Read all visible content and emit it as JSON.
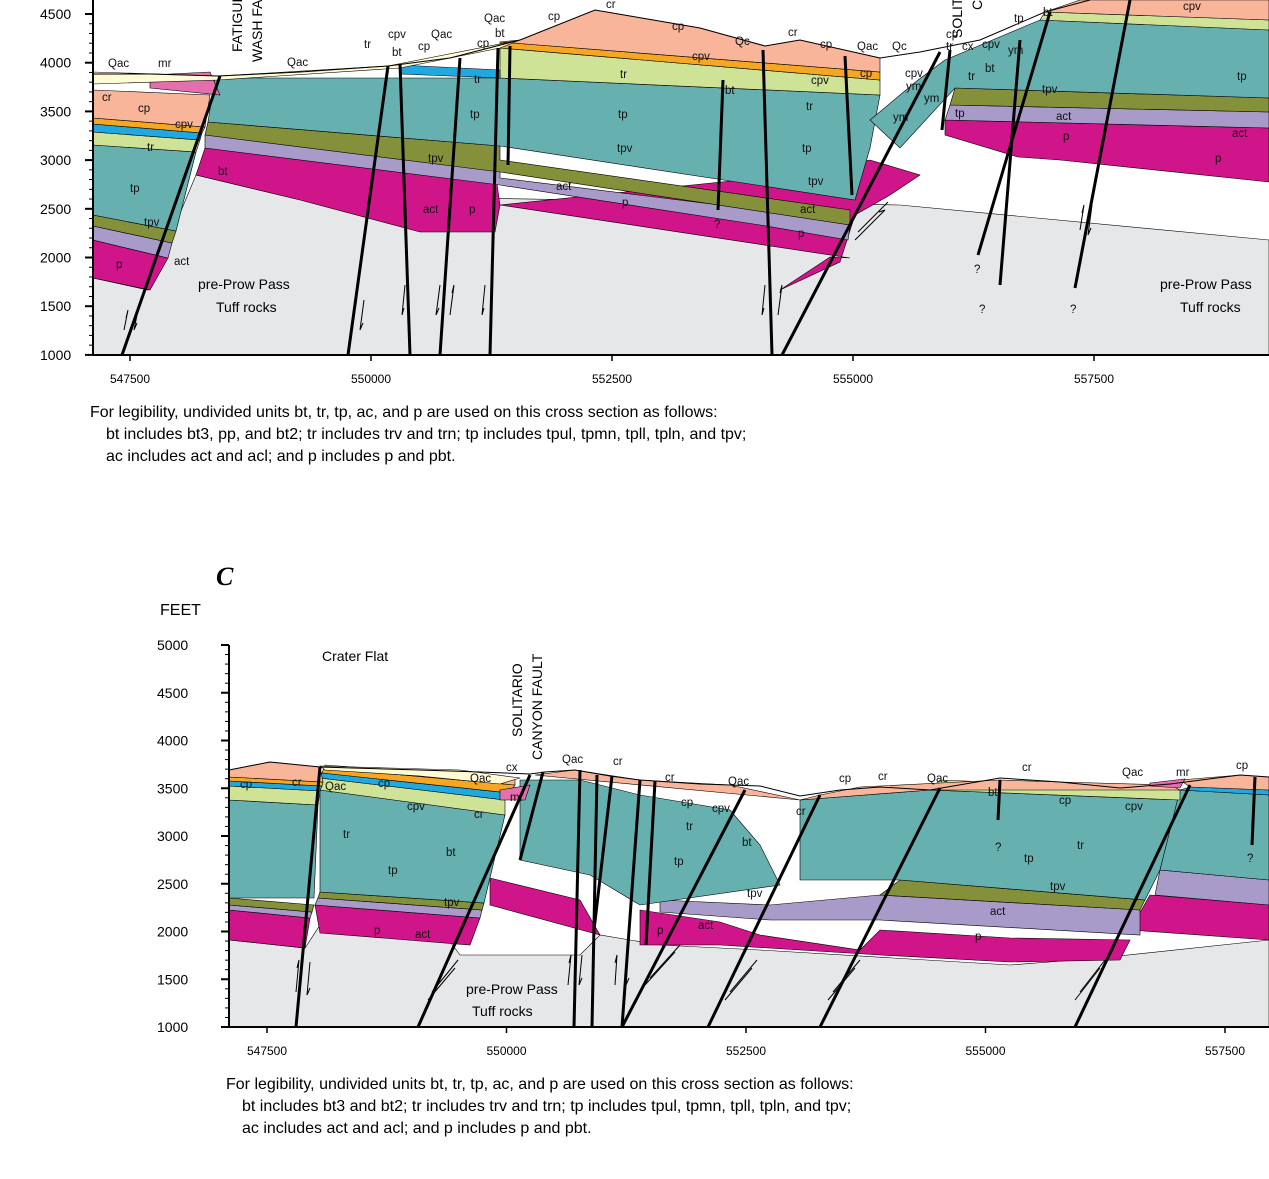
{
  "colors": {
    "basement": "#e6e7e8",
    "p": "#d0158a",
    "ac": "#a99bc9",
    "tpv": "#84913a",
    "tp": "#66b0b0",
    "tr": "#cfe396",
    "bt": "#20a9e0",
    "cpv": "#f5a623",
    "cp": "#f8b59a",
    "mr": "#e36fae",
    "Qac": "#fffbd5"
  },
  "sectionB": {
    "y_axis": {
      "ticks": [
        "4500",
        "4000",
        "3500",
        "3000",
        "2500",
        "2000",
        "1500",
        "1000"
      ]
    },
    "x_axis": {
      "ticks": [
        "547500",
        "550000",
        "552500",
        "555000",
        "557500"
      ]
    },
    "faults": [
      "FATIGUE",
      "WASH FAULT",
      "SOLITARIO",
      "CANYON FAULT"
    ],
    "labels": {
      "qac1": "Qac",
      "mr": "mr",
      "qac2": "Qac",
      "cr1": "cr",
      "cp1": "cp",
      "cpv1": "cpv",
      "tr1": "tr",
      "bt1": "bt",
      "tp1": "tp",
      "tpv1": "tpv",
      "act1": "act",
      "p1": "p",
      "tr2": "tr",
      "bt2": "bt",
      "cpv2": "cpv",
      "cp2": "cp",
      "qac3": "Qac",
      "tpv2": "tpv",
      "act2": "act",
      "p2": "p",
      "qac4": "Qac",
      "cp3": "cp",
      "bt3": "bt",
      "tr3": "tr",
      "tp2": "tp",
      "cr2": "cr",
      "cp4": "cp",
      "qc1": "Qc",
      "cr3": "cr",
      "cp5": "cp",
      "cpv3": "cpv",
      "tr4": "tr",
      "tp3": "tp",
      "tpv3": "tpv",
      "act3": "act",
      "p3": "p",
      "q1": "?",
      "bt4": "bt",
      "cpv4": "cpv",
      "tr5": "tr",
      "tp4": "tp",
      "tpv4": "tpv",
      "act4": "act",
      "p4": "p",
      "qac5": "Qac",
      "qc2": "Qc",
      "cp6": "cp",
      "ym1": "ym",
      "cp7": "cp",
      "cx1": "cx",
      "cpv5": "cpv",
      "cpv6": "cpv",
      "ym2": "ym",
      "tr6": "tr",
      "ym3": "ym",
      "bt5": "bt",
      "tr7": "tr",
      "tp5": "tp",
      "tp6": "tp",
      "bt6": "bt",
      "ym4": "ym",
      "cpv7": "cpv",
      "tp7": "tp",
      "tpv5": "tpv",
      "act5": "act",
      "act6": "act",
      "p5": "p",
      "p6": "p",
      "q2": "?",
      "q3": "?",
      "q4": "?",
      "basement1a": "pre-Prow Pass",
      "basement1b": "Tuff rocks",
      "basement2a": "pre-Prow Pass",
      "basement2b": "Tuff rocks",
      "cp_top": "cp",
      "cr_top": "cr",
      "qac_top": "Qac"
    },
    "note": [
      "For legibility, undivided units bt, tr, tp, ac, and p are used on this cross section as follows:",
      "bt includes bt3, pp, and bt2; tr includes trv and trn; tp includes tpul, tpmn, tpll, tpln, and tpv;",
      "ac includes act and acl; and p includes p and pbt."
    ]
  },
  "sectionC": {
    "panel_letter": "C",
    "y_title": "FEET",
    "y_axis": {
      "ticks": [
        "5000",
        "4500",
        "4000",
        "3500",
        "3000",
        "2500",
        "2000",
        "1500",
        "1000"
      ]
    },
    "x_axis": {
      "ticks": [
        "547500",
        "550000",
        "552500",
        "555000",
        "557500"
      ]
    },
    "region": "Crater Flat",
    "faults": [
      "SOLITARIO",
      "CANYON FAULT"
    ],
    "labels": {
      "cp1": "cp",
      "cr1": "cr",
      "qac1": "Qac",
      "cp2": "cp",
      "qac2": "Qac",
      "cx1": "cx",
      "qac3": "Qac",
      "cr2": "cr",
      "cpv1": "cpv",
      "cr3": "cr",
      "mr1": "mr",
      "tr1": "tr",
      "bt1": "bt",
      "tp1": "tp",
      "tpv1": "tpv",
      "p1": "p",
      "act1": "act",
      "cr4": "cr",
      "cp3": "cp",
      "cpv2": "cpv",
      "tr2": "tr",
      "bt2": "bt",
      "tp2": "tp",
      "qac4": "Qac",
      "cr5": "cr",
      "tpv2": "tpv",
      "act2": "act",
      "p2": "p",
      "cp4": "cp",
      "cr6": "cr",
      "qac5": "Qac",
      "cr7": "cr",
      "bt3": "bt",
      "cp5": "cp",
      "q1": "?",
      "tr3": "tr",
      "tp3": "tp",
      "tpv3": "tpv",
      "act3": "act",
      "p3": "p",
      "qac6": "Qac",
      "mr2": "mr",
      "cp6": "cp",
      "cpv3": "cpv",
      "q2": "?",
      "basement_a": "pre-Prow Pass",
      "basement_b": "Tuff rocks"
    },
    "note": [
      "For legibility, undivided units bt, tr, tp, ac, and p are used on this cross section as follows:",
      "bt includes bt3 and bt2; tr includes trv and trn; tp includes tpul, tpmn, tpll, tpln, and tpv;",
      "ac includes act and acl; and p includes p and pbt."
    ]
  }
}
